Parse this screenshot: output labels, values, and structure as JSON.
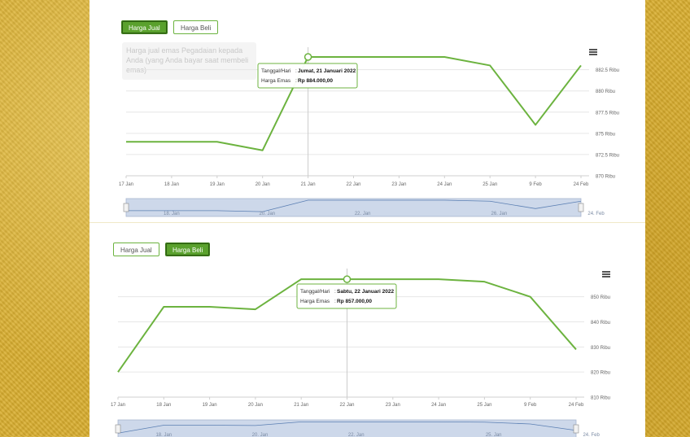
{
  "charts": [
    {
      "buttons": {
        "sell": "Harga Jual",
        "buy": "Harga Beli",
        "active": "sell"
      },
      "description": "Harga jual emas Pegadaian kepada Anda (yang Anda bayar saat membeli emas)",
      "tooltip": {
        "date_label": "Tanggal/Hari",
        "date_value": "Jumat, 21 Januari 2022",
        "price_label": "Harga Emas",
        "price_value": "Rp 884.000,00",
        "point_index": 4
      },
      "navigator_labels": [
        "18. Jan",
        "20. Jan",
        "22. Jan",
        "26. Jan",
        "24. Feb"
      ]
    },
    {
      "buttons": {
        "sell": "Harga Jual",
        "buy": "Harga Beli",
        "active": "buy"
      },
      "tooltip": {
        "date_label": "Tanggal/Hari",
        "date_value": "Sabtu, 22 Januari 2022",
        "price_label": "Harga Emas",
        "price_value": "Rp 857.000,00",
        "point_index": 5
      },
      "navigator_labels": [
        "18. Jan",
        "20. Jan",
        "22. Jan",
        "25. Jan",
        "24. Feb"
      ]
    }
  ],
  "chart_data": [
    {
      "type": "line",
      "categories": [
        "17 Jan",
        "18 Jan",
        "19 Jan",
        "20 Jan",
        "21 Jan",
        "22 Jan",
        "23 Jan",
        "24 Jan",
        "25 Jan",
        "9 Feb",
        "24 Feb"
      ],
      "values": [
        874000,
        874000,
        874000,
        873000,
        884000,
        884000,
        884000,
        884000,
        883000,
        876000,
        883000
      ],
      "yticks": [
        870000,
        872500,
        875000,
        877500,
        880000,
        882500
      ],
      "ytick_labels": [
        "870 Ribu",
        "872.5 Ribu",
        "875 Ribu",
        "877.5 Ribu",
        "880 Ribu",
        "882.5 Ribu"
      ],
      "ylim": [
        870000,
        884000
      ],
      "grid": true,
      "color": "#6cb33f"
    },
    {
      "type": "line",
      "categories": [
        "17 Jan",
        "18 Jan",
        "19 Jan",
        "20 Jan",
        "21 Jan",
        "22 Jan",
        "23 Jan",
        "24 Jan",
        "25 Jan",
        "9 Feb",
        "24 Feb"
      ],
      "values": [
        820000,
        846000,
        846000,
        845000,
        857000,
        857000,
        857000,
        857000,
        856000,
        850000,
        829000
      ],
      "yticks": [
        810000,
        820000,
        830000,
        840000,
        850000
      ],
      "ytick_labels": [
        "810 Ribu",
        "820 Ribu",
        "830 Ribu",
        "840 Ribu",
        "850 Ribu"
      ],
      "ylim": [
        810000,
        858000
      ],
      "grid": true,
      "color": "#6cb33f"
    }
  ]
}
